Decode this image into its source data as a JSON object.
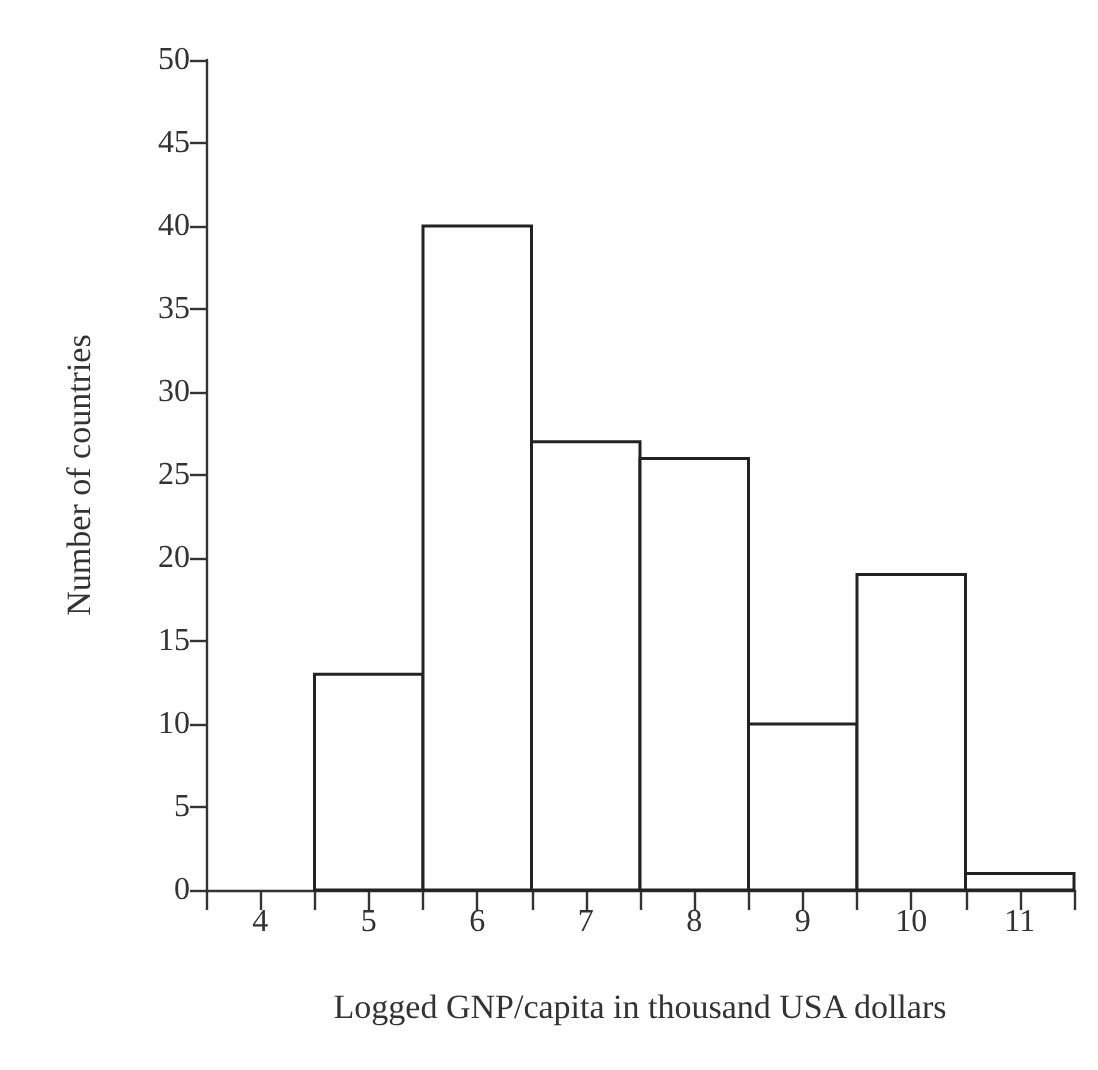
{
  "chart_data": {
    "type": "histogram",
    "xlabel": "Logged GNP/capita in thousand USA dollars",
    "ylabel": "Number of countries",
    "bins": [
      3.5,
      4.5,
      5.5,
      6.5,
      7.5,
      8.5,
      9.5,
      10.5,
      11.5
    ],
    "values": [
      0,
      13,
      40,
      27,
      26,
      10,
      19,
      1
    ],
    "color": "#ffffff",
    "xlim": [
      3.5,
      11.5
    ],
    "xticks": [
      {
        "value": 3.5,
        "label": null
      },
      4,
      {
        "value": 4.5,
        "label": null
      },
      5,
      {
        "value": 5.5,
        "label": null
      },
      6,
      {
        "value": 6.5,
        "label": null
      },
      7,
      {
        "value": 7.5,
        "label": null
      },
      8,
      {
        "value": 8.5,
        "label": null
      },
      9,
      {
        "value": 9.5,
        "label": null
      },
      10,
      {
        "value": 10.5,
        "label": null
      },
      11,
      {
        "value": 11.5,
        "label": null
      }
    ],
    "ylim": [
      0,
      50
    ],
    "yticks": [
      0,
      5,
      10,
      15,
      20,
      25,
      30,
      35,
      40,
      45,
      50
    ],
    "grid": false
  }
}
